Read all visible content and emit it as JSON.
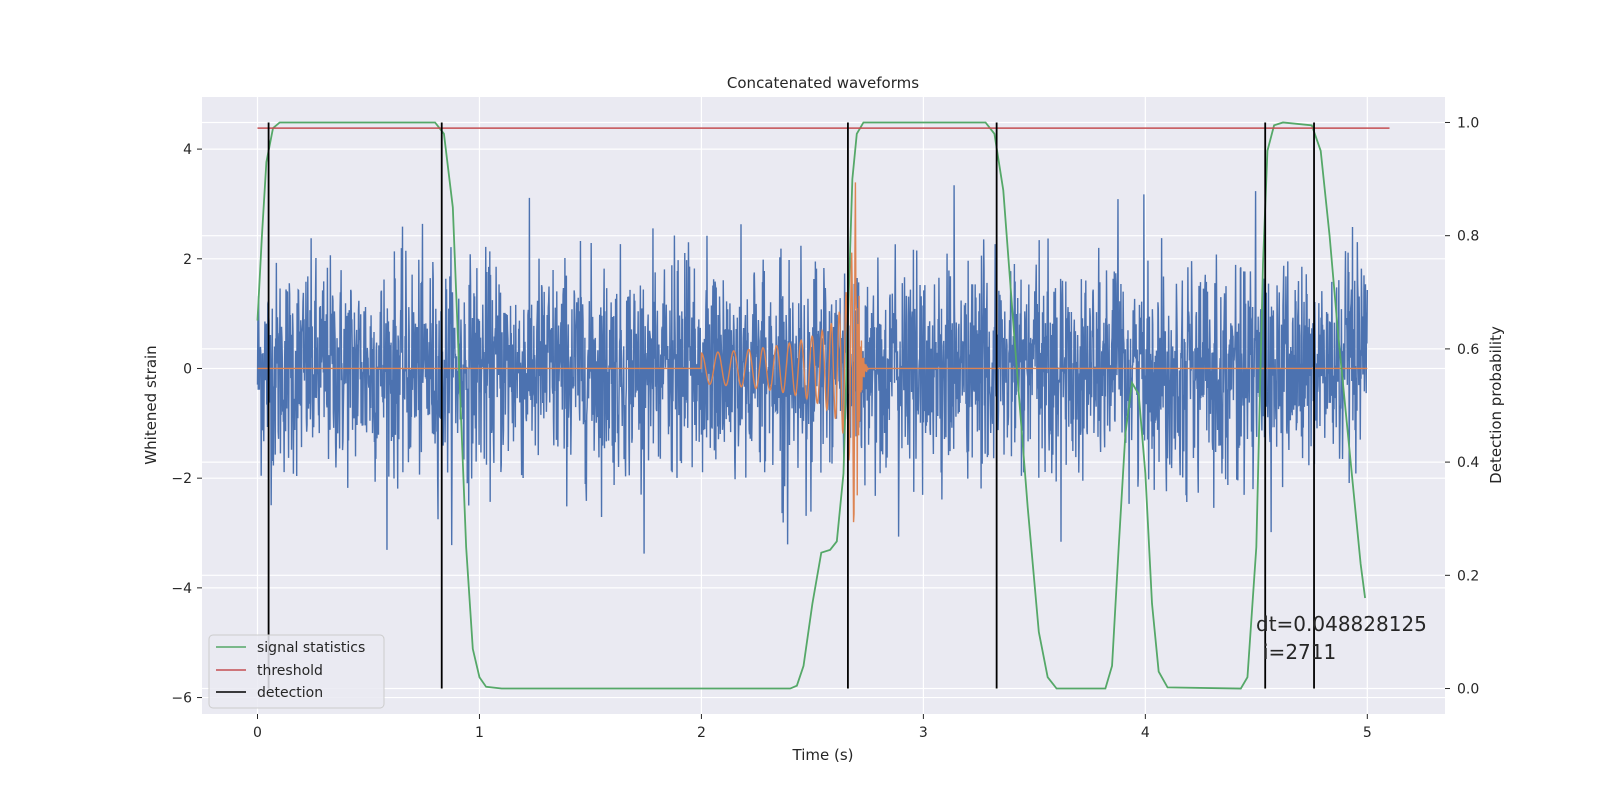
{
  "chart_data": {
    "type": "line",
    "title": "Concatenated waveforms",
    "xlabel": "Time (s)",
    "ylabel_left": "Whitened strain",
    "ylabel_right": "Detection probability",
    "xlim": [
      -0.25,
      5.35
    ],
    "ylim_left": [
      -6.3,
      4.95
    ],
    "ylim_right": [
      -0.045,
      1.045
    ],
    "x_ticks": [
      0,
      1,
      2,
      3,
      4,
      5
    ],
    "y_ticks_left": [
      4,
      2,
      0,
      -2,
      -4,
      -6
    ],
    "y_ticks_right": [
      1.0,
      0.8,
      0.6,
      0.4,
      0.2,
      0.0
    ],
    "y_tick_labels_left": [
      "4",
      "2",
      "0",
      "−2",
      "−4",
      "−6"
    ],
    "y_tick_labels_right": [
      "1.0",
      "0.8",
      "0.6",
      "0.4",
      "0.2",
      "0.0"
    ],
    "grid": true,
    "legend_position": "lower-left",
    "series": [
      {
        "name": "whitened strain",
        "axis": "left",
        "color": "#4c72b0",
        "style": "noise",
        "x_range": [
          0,
          5
        ],
        "amplitude_range": [
          -3.5,
          3.7
        ],
        "in_legend": false
      },
      {
        "name": "injected waveform",
        "axis": "left",
        "color": "#dd8452",
        "style": "chirp",
        "x_range": [
          0,
          5
        ],
        "chirp_start": 2.0,
        "merger": 2.7,
        "peak_amplitude": 3.4,
        "in_legend": false
      },
      {
        "name": "signal statistics",
        "axis": "right",
        "color": "#55a868",
        "in_legend": true,
        "points": [
          [
            0.0,
            0.65
          ],
          [
            0.02,
            0.8
          ],
          [
            0.04,
            0.93
          ],
          [
            0.07,
            0.99
          ],
          [
            0.1,
            1.0
          ],
          [
            0.8,
            1.0
          ],
          [
            0.84,
            0.98
          ],
          [
            0.88,
            0.85
          ],
          [
            0.91,
            0.55
          ],
          [
            0.94,
            0.25
          ],
          [
            0.97,
            0.07
          ],
          [
            1.0,
            0.02
          ],
          [
            1.03,
            0.003
          ],
          [
            1.1,
            0.0
          ],
          [
            2.4,
            0.0
          ],
          [
            2.43,
            0.005
          ],
          [
            2.46,
            0.04
          ],
          [
            2.5,
            0.15
          ],
          [
            2.54,
            0.24
          ],
          [
            2.58,
            0.245
          ],
          [
            2.61,
            0.26
          ],
          [
            2.64,
            0.38
          ],
          [
            2.66,
            0.65
          ],
          [
            2.68,
            0.9
          ],
          [
            2.7,
            0.98
          ],
          [
            2.73,
            1.0
          ],
          [
            3.28,
            1.0
          ],
          [
            3.32,
            0.98
          ],
          [
            3.36,
            0.88
          ],
          [
            3.41,
            0.62
          ],
          [
            3.47,
            0.32
          ],
          [
            3.52,
            0.1
          ],
          [
            3.56,
            0.02
          ],
          [
            3.6,
            0.0
          ],
          [
            3.82,
            0.0
          ],
          [
            3.85,
            0.04
          ],
          [
            3.88,
            0.25
          ],
          [
            3.91,
            0.45
          ],
          [
            3.94,
            0.54
          ],
          [
            3.97,
            0.52
          ],
          [
            4.0,
            0.38
          ],
          [
            4.03,
            0.15
          ],
          [
            4.06,
            0.03
          ],
          [
            4.1,
            0.002
          ],
          [
            4.43,
            0.0
          ],
          [
            4.46,
            0.02
          ],
          [
            4.5,
            0.25
          ],
          [
            4.53,
            0.75
          ],
          [
            4.55,
            0.95
          ],
          [
            4.58,
            0.995
          ],
          [
            4.62,
            1.0
          ],
          [
            4.75,
            0.995
          ],
          [
            4.79,
            0.95
          ],
          [
            4.83,
            0.8
          ],
          [
            4.87,
            0.62
          ],
          [
            4.91,
            0.46
          ],
          [
            4.94,
            0.34
          ],
          [
            4.97,
            0.22
          ],
          [
            4.99,
            0.16
          ]
        ]
      },
      {
        "name": "threshold",
        "axis": "right",
        "color": "#c44e52",
        "in_legend": true,
        "y": 0.99,
        "x_range": [
          0.0,
          5.1
        ]
      }
    ],
    "detections": {
      "name": "detection",
      "color": "#000000",
      "times": [
        0.05,
        0.83,
        2.66,
        3.33,
        4.54,
        4.76
      ],
      "y_range_right": [
        0.0,
        1.0
      ]
    },
    "annotation": {
      "line1": "dt=0.048828125",
      "line2": "i=2711"
    }
  }
}
